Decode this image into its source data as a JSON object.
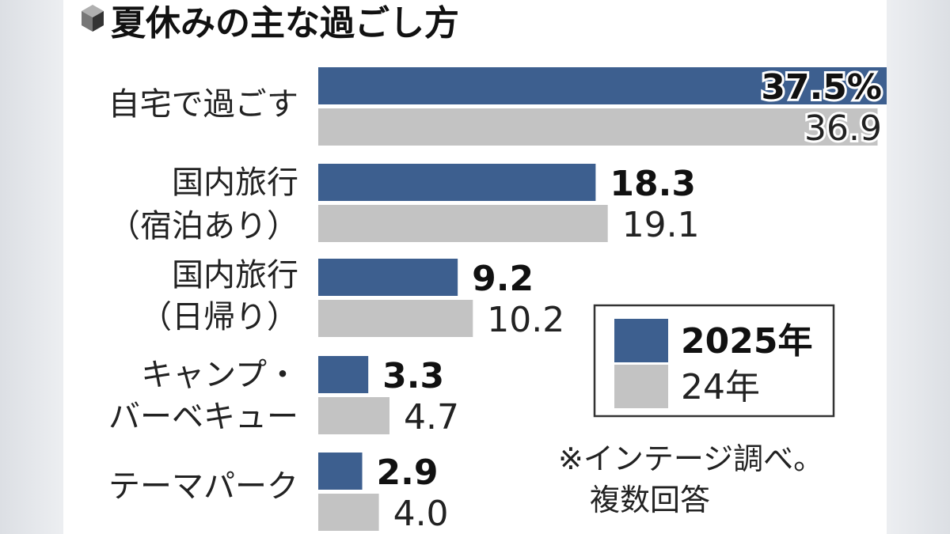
{
  "colors": {
    "series_2025": "#3d5f8f",
    "series_2024": "#c3c3c3",
    "background": "#ffffff",
    "text": "#222222"
  },
  "icon": "cube-icon",
  "chart_data": {
    "type": "bar",
    "orientation": "horizontal",
    "title": "夏休みの主な過ごし方",
    "categories": [
      [
        "自宅で過ごす"
      ],
      [
        "国内旅行",
        "（宿泊あり）"
      ],
      [
        "国内旅行",
        "（日帰り）"
      ],
      [
        "キャンプ・",
        "バーベキュー"
      ],
      [
        "テーマパーク"
      ]
    ],
    "series": [
      {
        "name": "2025年",
        "values": [
          37.5,
          18.3,
          9.2,
          3.3,
          2.9
        ],
        "labels": [
          "37.5%",
          "18.3",
          "9.2",
          "3.3",
          "2.9"
        ]
      },
      {
        "name": "24年",
        "values": [
          36.9,
          19.1,
          10.2,
          4.7,
          4.0
        ],
        "labels": [
          "36.9",
          "19.1",
          "10.2",
          "4.7",
          "4.0"
        ]
      }
    ],
    "xlim": [
      0,
      37.5
    ],
    "grid": false,
    "legend_position": "center-right",
    "note": [
      "※インテージ調べ。",
      "複数回答"
    ]
  }
}
